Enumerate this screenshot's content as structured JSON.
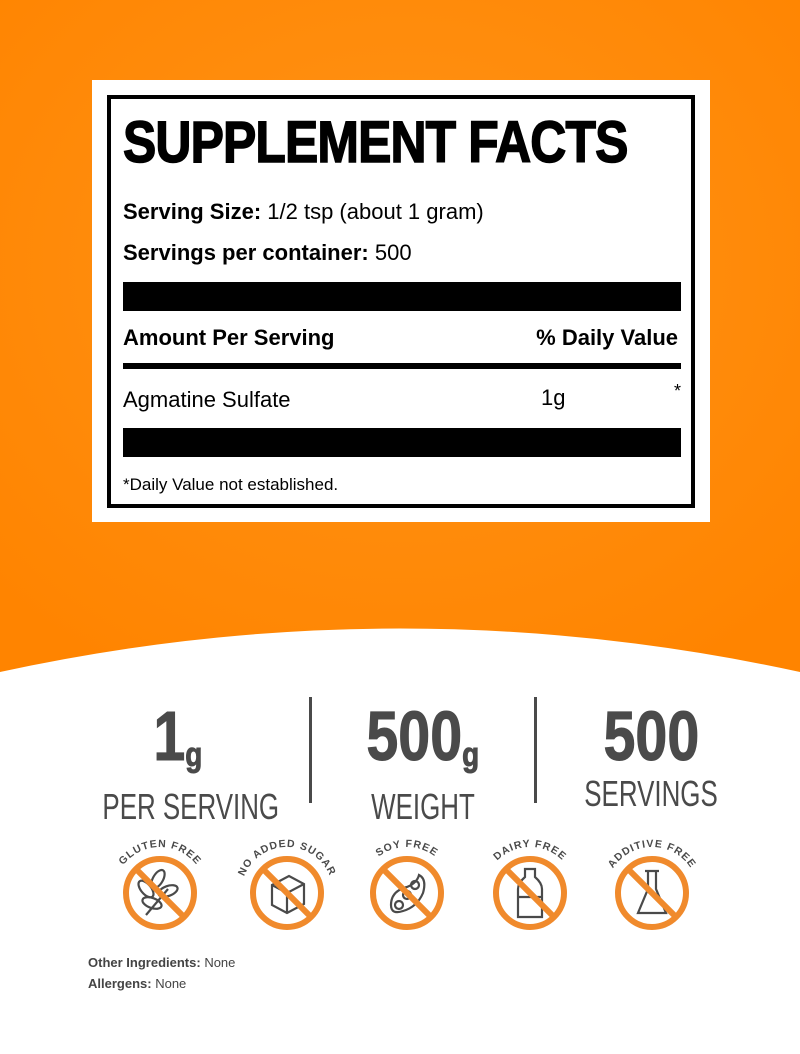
{
  "colors": {
    "orange": "#FF8A0D",
    "icon_orange": "#F08A2C",
    "dark_gray": "#4a4a4a"
  },
  "facts": {
    "title": "SUPPLEMENT FACTS",
    "serving_size_label": "Serving Size:",
    "serving_size_value": "1/2 tsp (about 1 gram)",
    "servings_label": "Servings per container:",
    "servings_value": "500",
    "amount_header": "Amount Per Serving",
    "dv_header": "% Daily Value",
    "ingredient": {
      "name": "Agmatine Sulfate",
      "amount": "1g",
      "dv": "*"
    },
    "footnote": "*Daily Value not established."
  },
  "stats": [
    {
      "value": "1",
      "unit": "g",
      "label": "PER SERVING"
    },
    {
      "value": "500",
      "unit": "g",
      "label": "WEIGHT"
    },
    {
      "value": "500",
      "unit": "",
      "label": "SERVINGS"
    }
  ],
  "badges": [
    {
      "label": "GLUTEN FREE",
      "icon": "wheat-icon"
    },
    {
      "label": "NO ADDED SUGAR",
      "icon": "sugar-cube-icon"
    },
    {
      "label": "SOY FREE",
      "icon": "soybean-icon"
    },
    {
      "label": "DAIRY FREE",
      "icon": "milk-bottle-icon"
    },
    {
      "label": "ADDITIVE FREE",
      "icon": "flask-icon"
    }
  ],
  "other_ingredients": {
    "label": "Other Ingredients:",
    "value": "None"
  },
  "allergens": {
    "label": "Allergens:",
    "value": "None"
  }
}
